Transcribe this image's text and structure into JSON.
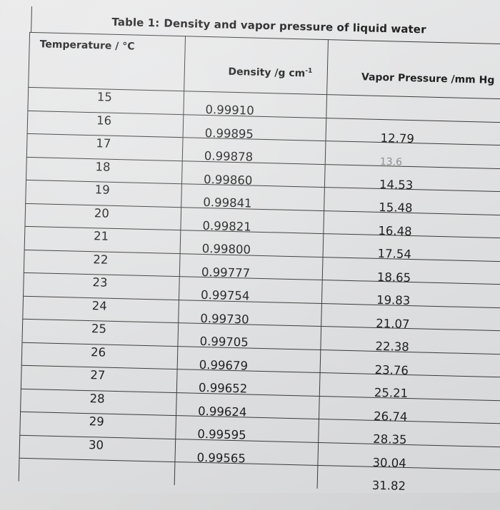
{
  "table": {
    "title_prefix": "Table 1:",
    "title": "Density and vapor pressure of liquid water",
    "headers": {
      "temperature": "Temperature / °C",
      "density": "Density /g cm",
      "density_sup": "-1",
      "vapor_pressure": "Vapor Pressure /mm Hg"
    },
    "rows": [
      {
        "temp": "15",
        "density": "0.99910",
        "vp": ""
      },
      {
        "temp": "16",
        "density": "0.99895",
        "vp": "12.79"
      },
      {
        "temp": "17",
        "density": "0.99878",
        "vp": "13.6"
      },
      {
        "temp": "18",
        "density": "0.99860",
        "vp": "14.53"
      },
      {
        "temp": "19",
        "density": "0.99841",
        "vp": "15.48"
      },
      {
        "temp": "20",
        "density": "0.99821",
        "vp": "16.48"
      },
      {
        "temp": "21",
        "density": "0.99800",
        "vp": "17.54"
      },
      {
        "temp": "22",
        "density": "0.99777",
        "vp": "18.65"
      },
      {
        "temp": "23",
        "density": "0.99754",
        "vp": "19.83"
      },
      {
        "temp": "24",
        "density": "0.99730",
        "vp": "21.07"
      },
      {
        "temp": "25",
        "density": "0.99705",
        "vp": "22.38"
      },
      {
        "temp": "26",
        "density": "0.99679",
        "vp": "23.76"
      },
      {
        "temp": "27",
        "density": "0.99652",
        "vp": "25.21"
      },
      {
        "temp": "28",
        "density": "0.99624",
        "vp": "26.74"
      },
      {
        "temp": "29",
        "density": "0.99595",
        "vp": "28.35"
      },
      {
        "temp": "30",
        "density": "0.99565",
        "vp": "30.04"
      }
    ],
    "extra_vp": "31.82"
  }
}
